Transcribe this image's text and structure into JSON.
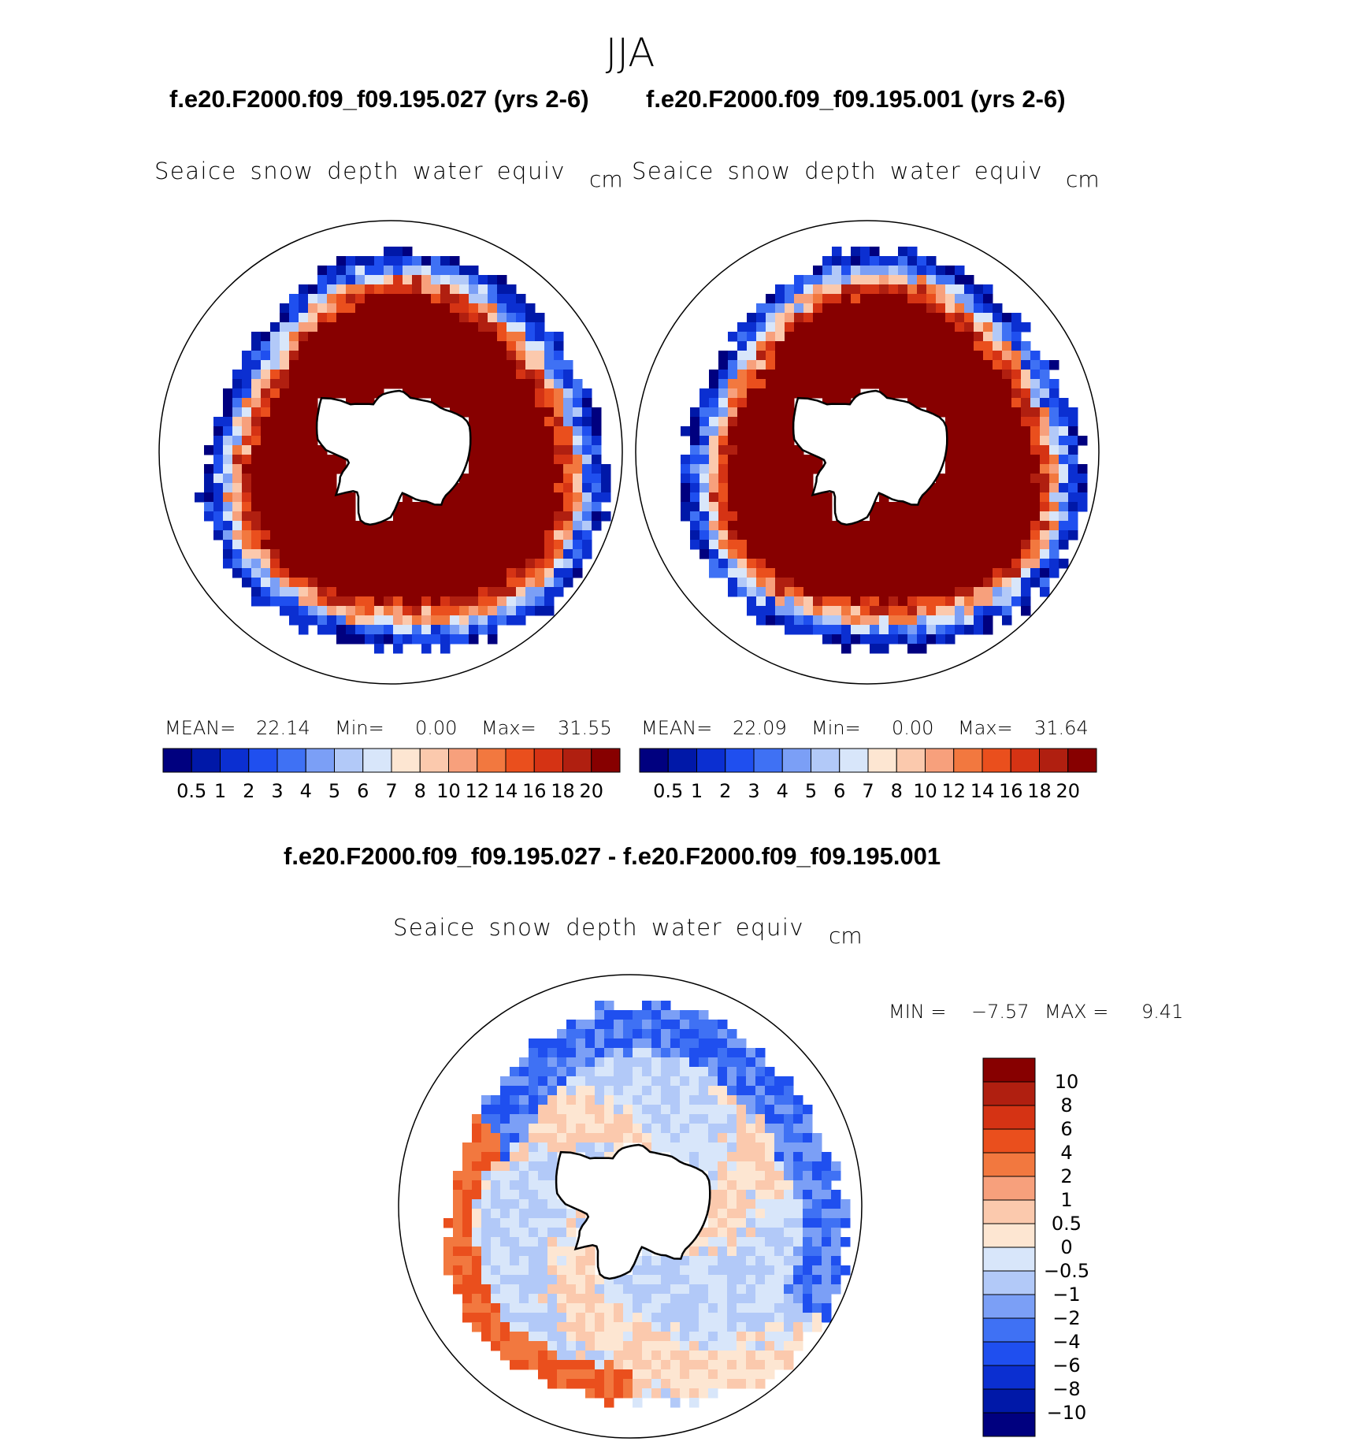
{
  "page": {
    "season": "JJA",
    "variable": "Seaice snow depth water equiv",
    "units": "cm"
  },
  "palette": {
    "abs": [
      "#00007f",
      "#0018a8",
      "#0b2fd1",
      "#1f4fef",
      "#3f71f4",
      "#7b9ff6",
      "#b2c9f8",
      "#d8e6fa",
      "#fde6d2",
      "#fbc9ad",
      "#f7a07c",
      "#f2783f",
      "#ea4f1d",
      "#d53314",
      "#b01f10",
      "#870000"
    ],
    "diff": [
      "#00007f",
      "#0018a8",
      "#0b2fd1",
      "#1f4fef",
      "#3f71f4",
      "#7b9ff6",
      "#b2c9f8",
      "#d8e6fa",
      "#fde6d2",
      "#fbc9ad",
      "#f7a07c",
      "#f2783f",
      "#ea4f1d",
      "#d53314",
      "#b01f10",
      "#870000"
    ]
  },
  "chart_data": [
    {
      "type": "heatmap",
      "projection": "south-polar-stereographic",
      "title": "f.e20.F2000.f09_f09.195.027 (yrs 2-6)",
      "variable": "Seaice snow depth water equiv",
      "units": "cm",
      "stats": {
        "mean_label": "MEAN=",
        "mean": "22.14",
        "min_label": "Min=",
        "min": "0.00",
        "max_label": "Max=",
        "max": "31.55"
      },
      "colorbar_levels": [
        "0.5",
        "1",
        "2",
        "3",
        "4",
        "5",
        "6",
        "7",
        "8",
        "10",
        "12",
        "14",
        "16",
        "18",
        "20"
      ],
      "field_summary": {
        "pack_value": 25,
        "seed": 27
      }
    },
    {
      "type": "heatmap",
      "projection": "south-polar-stereographic",
      "title": "f.e20.F2000.f09_f09.195.001 (yrs 2-6)",
      "variable": "Seaice snow depth water equiv",
      "units": "cm",
      "stats": {
        "mean_label": "MEAN=",
        "mean": "22.09",
        "min_label": "Min=",
        "min": "0.00",
        "max_label": "Max=",
        "max": "31.64"
      },
      "colorbar_levels": [
        "0.5",
        "1",
        "2",
        "3",
        "4",
        "5",
        "6",
        "7",
        "8",
        "10",
        "12",
        "14",
        "16",
        "18",
        "20"
      ],
      "field_summary": {
        "pack_value": 25,
        "seed": 1
      }
    },
    {
      "type": "heatmap",
      "projection": "south-polar-stereographic",
      "title": "f.e20.F2000.f09_f09.195.027 - f.e20.F2000.f09_f09.195.001",
      "variable": "Seaice snow depth water equiv",
      "units": "cm",
      "stats": {
        "min_label": "MIN =",
        "min": "−7.57",
        "max_label": "MAX =",
        "max": "9.41"
      },
      "colorbar_levels": [
        "10",
        "8",
        "6",
        "4",
        "2",
        "1",
        "0.5",
        "0",
        "−0.5",
        "−1",
        "−2",
        "−4",
        "−6",
        "−8",
        "−10"
      ]
    }
  ]
}
